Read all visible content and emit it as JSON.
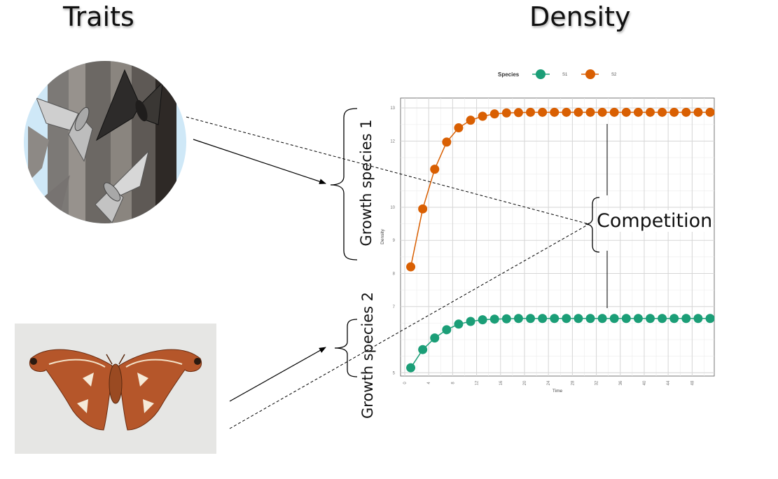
{
  "titles": {
    "traits": "Traits",
    "density": "Density"
  },
  "labels": {
    "growth_species_1": "Growth species 1",
    "growth_species_2": "Growth species 2",
    "competition": "Competition"
  },
  "colors": {
    "s1": "#1b9e77",
    "s2": "#d95f02"
  },
  "images": {
    "top": "cartoon-moths-on-tree-illustration",
    "bottom": "atlas-moth-photo"
  },
  "chart_data": {
    "type": "line",
    "xlabel": "Time",
    "ylabel": "Density",
    "xlim": [
      0,
      51
    ],
    "ylim": [
      4.9,
      13.3
    ],
    "x_ticks": [
      0,
      4,
      8,
      12,
      16,
      20,
      24,
      28,
      32,
      36,
      40,
      44,
      48
    ],
    "y_ticks": [
      5,
      7,
      8,
      9,
      10,
      12,
      13
    ],
    "grid": true,
    "legend": {
      "title": "Species",
      "position": "top"
    },
    "series": [
      {
        "name": "S1",
        "color": "#1b9e77",
        "x": [
          1,
          3,
          5,
          7,
          9,
          11,
          13,
          15,
          17,
          19,
          21,
          23,
          25,
          27,
          29,
          31,
          33,
          35,
          37,
          39,
          41,
          43,
          45,
          47,
          49,
          51
        ],
        "values": [
          5.15,
          5.7,
          6.05,
          6.3,
          6.47,
          6.55,
          6.6,
          6.62,
          6.63,
          6.64,
          6.64,
          6.64,
          6.64,
          6.64,
          6.64,
          6.64,
          6.64,
          6.64,
          6.64,
          6.64,
          6.64,
          6.64,
          6.64,
          6.64,
          6.64,
          6.64
        ]
      },
      {
        "name": "S2",
        "color": "#d95f02",
        "x": [
          1,
          3,
          5,
          7,
          9,
          11,
          13,
          15,
          17,
          19,
          21,
          23,
          25,
          27,
          29,
          31,
          33,
          35,
          37,
          39,
          41,
          43,
          45,
          47,
          49,
          51
        ],
        "values": [
          8.2,
          9.95,
          11.15,
          11.97,
          12.4,
          12.63,
          12.75,
          12.82,
          12.85,
          12.86,
          12.87,
          12.87,
          12.87,
          12.87,
          12.87,
          12.87,
          12.87,
          12.87,
          12.87,
          12.87,
          12.87,
          12.87,
          12.87,
          12.87,
          12.87,
          12.87
        ]
      }
    ]
  }
}
